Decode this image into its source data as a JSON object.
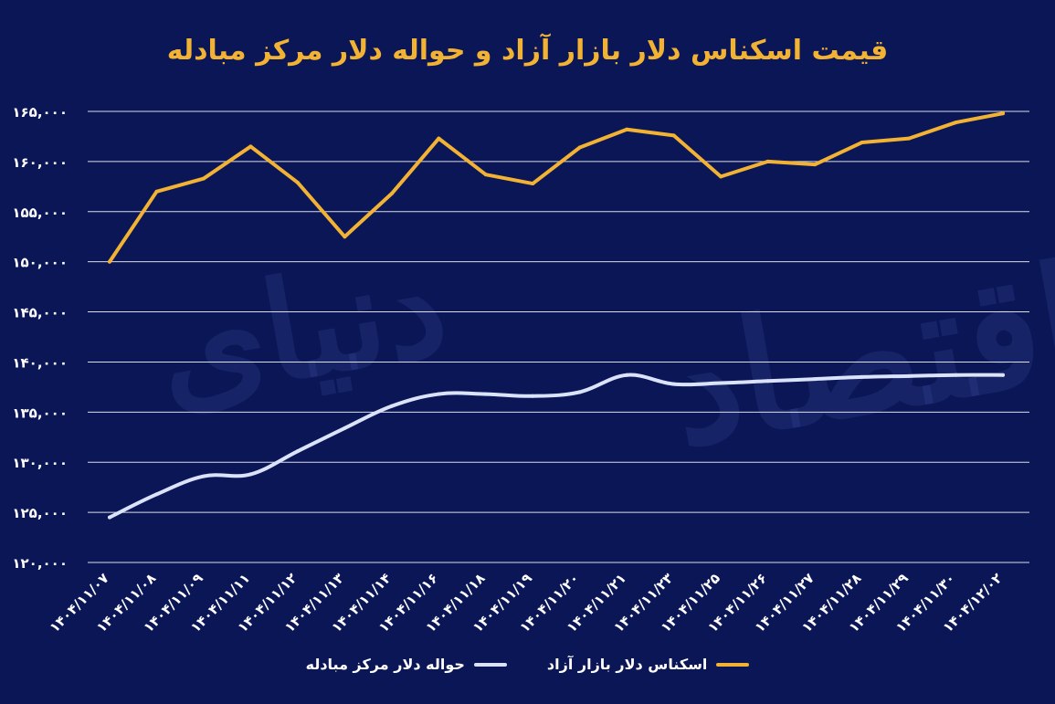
{
  "title": "قیمت اسکناس دلار بازار آزاد و حواله دلار مرکز مبادله",
  "watermark": "دنیای اقتصاد",
  "colors": {
    "background": "#0b1657",
    "free_market": "#f2b233",
    "exchange_center": "#dbe3fb",
    "grid": "#ffffff",
    "text": "#ffffff"
  },
  "chart_data": {
    "type": "line",
    "categories": [
      "۱۴۰۴/۱۱/۰۷",
      "۱۴۰۴/۱۱/۰۸",
      "۱۴۰۴/۱۱/۰۹",
      "۱۴۰۴/۱۱/۱۱",
      "۱۴۰۴/۱۱/۱۲",
      "۱۴۰۴/۱۱/۱۳",
      "۱۴۰۴/۱۱/۱۴",
      "۱۴۰۴/۱۱/۱۶",
      "۱۴۰۴/۱۱/۱۸",
      "۱۴۰۴/۱۱/۱۹",
      "۱۴۰۴/۱۱/۲۰",
      "۱۴۰۴/۱۱/۲۱",
      "۱۴۰۴/۱۱/۲۳",
      "۱۴۰۴/۱۱/۲۵",
      "۱۴۰۴/۱۱/۲۶",
      "۱۴۰۴/۱۱/۲۷",
      "۱۴۰۴/۱۱/۲۸",
      "۱۴۰۴/۱۱/۲۹",
      "۱۴۰۴/۱۱/۳۰",
      "۱۴۰۴/۱۲/۰۲"
    ],
    "series": [
      {
        "name": "اسکناس دلار بازار آزاد",
        "color": "#f2b233",
        "values": [
          150000,
          157000,
          158300,
          161500,
          157900,
          152500,
          156800,
          162300,
          158700,
          157800,
          161400,
          163200,
          162600,
          158500,
          160000,
          159700,
          161900,
          162300,
          163900,
          164800
        ]
      },
      {
        "name": "حواله دلار مرکز مبادله",
        "color": "#dbe3fb",
        "values": [
          124500,
          126800,
          128600,
          128800,
          131100,
          133400,
          135600,
          136800,
          136800,
          136600,
          137000,
          138700,
          137800,
          137900,
          138100,
          138300,
          138500,
          138600,
          138700,
          138700
        ]
      }
    ],
    "yticks": [
      "۱۲۰,۰۰۰",
      "۱۲۵,۰۰۰",
      "۱۳۰,۰۰۰",
      "۱۳۵,۰۰۰",
      "۱۴۰,۰۰۰",
      "۱۴۵,۰۰۰",
      "۱۵۰,۰۰۰",
      "۱۵۵,۰۰۰",
      "۱۶۰,۰۰۰",
      "۱۶۵,۰۰۰"
    ],
    "ylim": [
      120000,
      165000
    ],
    "ystep": 5000,
    "xlabel": "",
    "ylabel": "",
    "grid": true,
    "legend_position": "bottom-center"
  }
}
